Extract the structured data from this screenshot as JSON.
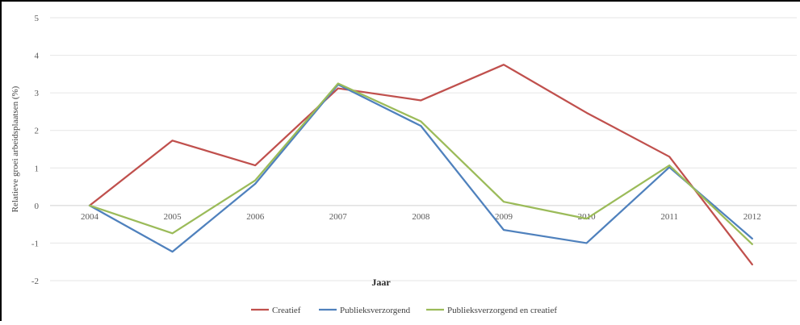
{
  "chart_data": {
    "type": "line",
    "title": "",
    "xlabel": "Jaar",
    "ylabel": "Relatieve groei arbeidsplaatsen (%)",
    "categories": [
      "2004",
      "2005",
      "2006",
      "2007",
      "2008",
      "2009",
      "2010",
      "2011",
      "2012"
    ],
    "ylim": [
      -2,
      5
    ],
    "yticks": [
      5,
      4,
      3,
      2,
      1,
      0,
      -1,
      -2
    ],
    "ytick_labels": [
      "5",
      "4",
      "3",
      "2",
      "1",
      "0",
      "-1",
      "-2"
    ],
    "grid": true,
    "legend_position": "bottom",
    "series": [
      {
        "name": "Creatief",
        "color": "#c0504d",
        "values": [
          0,
          1.73,
          1.07,
          3.12,
          2.8,
          3.75,
          2.47,
          1.3,
          -1.57
        ]
      },
      {
        "name": "Publieksverzorgend",
        "color": "#4f81bd",
        "values": [
          0,
          -1.23,
          0.58,
          3.22,
          2.12,
          -0.65,
          -1.0,
          1.02,
          -0.88
        ]
      },
      {
        "name": "Publieksverzorgend en creatief",
        "color": "#9bbb59",
        "values": [
          0,
          -0.74,
          0.67,
          3.25,
          2.24,
          0.1,
          -0.35,
          1.07,
          -1.03
        ]
      }
    ]
  }
}
